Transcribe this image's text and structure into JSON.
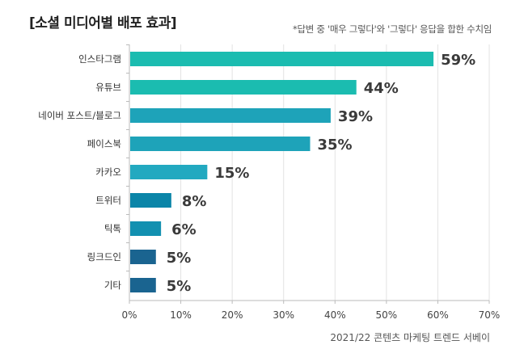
{
  "chart_data": {
    "type": "bar",
    "orientation": "horizontal",
    "title": "[소셜 미디어별 배포 효과]",
    "note": "*답변 중 '매우 그렇다'와 '그렇다' 응답을 합한 수치임",
    "source": "2021/22 콘텐츠 마케팅 트렌드 서베이",
    "categories": [
      "인스타그램",
      "유튜브",
      "네이버 포스트/블로그",
      "페이스북",
      "카카오",
      "트위터",
      "틱톡",
      "링크드인",
      "기타"
    ],
    "values": [
      59,
      44,
      39,
      35,
      15,
      8,
      6,
      5,
      5
    ],
    "value_labels": [
      "59%",
      "44%",
      "39%",
      "35%",
      "15%",
      "8%",
      "6%",
      "5%",
      "5%"
    ],
    "bar_colors": [
      "#1bbcb0",
      "#1bbcb0",
      "#1ea3b9",
      "#1ea3b9",
      "#22a9c0",
      "#0b85a8",
      "#1290b0",
      "#1a6490",
      "#1a6490"
    ],
    "xlim": [
      0,
      70
    ],
    "xticks": [
      "0%",
      "10%",
      "20%",
      "30%",
      "40%",
      "50%",
      "60%",
      "70%"
    ],
    "grid": "vertical"
  }
}
